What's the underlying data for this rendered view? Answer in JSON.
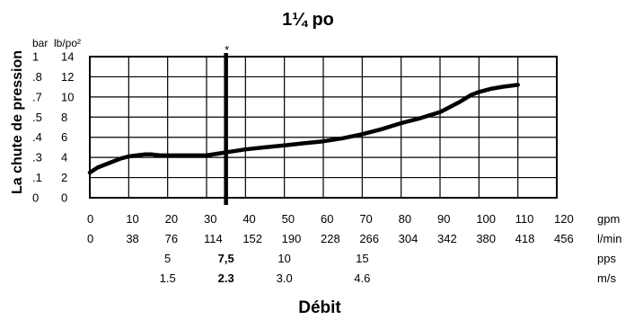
{
  "chart_data": {
    "type": "line",
    "title": "1¼ po",
    "xlabel": "Débit",
    "ylabel": "La chute de pression",
    "y_units": [
      "bar",
      "lb/po²"
    ],
    "y_bar_ticks": [
      "1",
      ".8",
      ".7",
      ".5",
      ".4",
      ".3",
      ".1",
      "0"
    ],
    "y_psi_ticks": [
      14,
      12,
      10,
      8,
      6,
      4,
      2,
      0
    ],
    "ylim": [
      0,
      14
    ],
    "x_gpm_ticks": [
      0,
      10,
      20,
      30,
      40,
      50,
      60,
      70,
      80,
      90,
      100,
      110,
      120
    ],
    "x_lmin_ticks": [
      "0",
      "38",
      "76",
      "114",
      "152",
      "190",
      "228",
      "266",
      "304",
      "342",
      "380",
      "418",
      "456"
    ],
    "x_pps_ticks": [
      {
        "gpm": 20,
        "label": "5"
      },
      {
        "gpm": 35,
        "label": "7,5",
        "bold": true
      },
      {
        "gpm": 50,
        "label": "10"
      },
      {
        "gpm": 70,
        "label": "15"
      }
    ],
    "x_ms_ticks": [
      {
        "gpm": 20,
        "label": "1.5"
      },
      {
        "gpm": 35,
        "label": "2.3",
        "bold": true
      },
      {
        "gpm": 50,
        "label": "3.0"
      },
      {
        "gpm": 70,
        "label": "4.6"
      }
    ],
    "x_units": [
      "gpm",
      "l/min",
      "pps",
      "m/s"
    ],
    "xlim": [
      0,
      120
    ],
    "grid": true,
    "marker": {
      "x": 35,
      "label": "*"
    },
    "series": [
      {
        "x": [
          0,
          2,
          4,
          6,
          8,
          10,
          12,
          14,
          16,
          18,
          20,
          25,
          30,
          35,
          40,
          45,
          50,
          55,
          60,
          65,
          70,
          75,
          80,
          85,
          90,
          92,
          95,
          98,
          100,
          103,
          106,
          110
        ],
        "y": [
          2.5,
          3.0,
          3.3,
          3.6,
          3.9,
          4.1,
          4.2,
          4.3,
          4.3,
          4.2,
          4.2,
          4.2,
          4.2,
          4.5,
          4.8,
          5.0,
          5.2,
          5.4,
          5.6,
          5.9,
          6.3,
          6.8,
          7.4,
          7.9,
          8.5,
          8.9,
          9.5,
          10.2,
          10.5,
          10.8,
          11.0,
          11.2
        ]
      }
    ]
  }
}
